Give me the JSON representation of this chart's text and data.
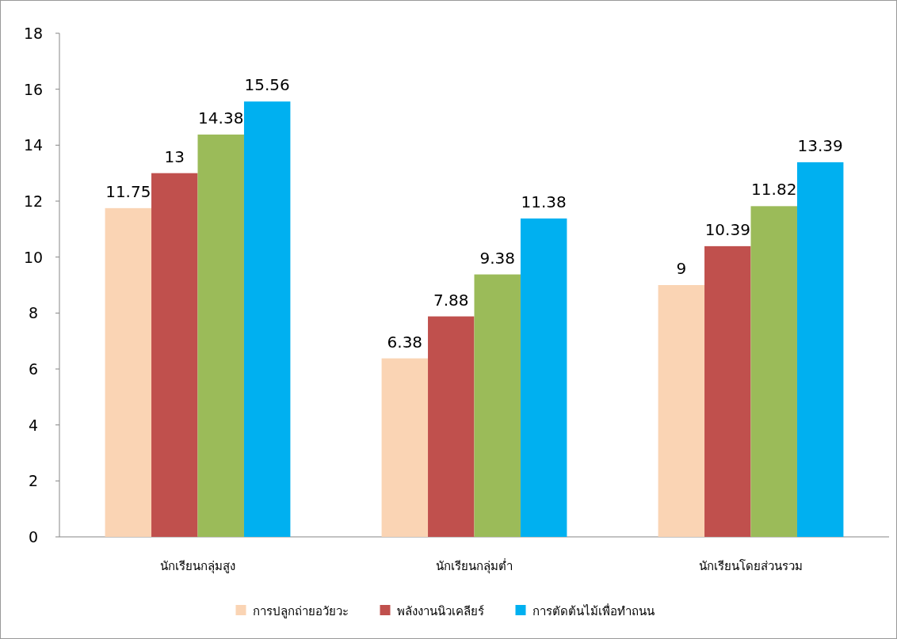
{
  "chart_data": {
    "type": "bar",
    "categories": [
      "นักเรียนกลุ่มสูง",
      "นักเรียนกลุ่มต่ำ",
      "นักเรียนโดยส่วนรวม"
    ],
    "series": [
      {
        "name": "การปลูกถ่ายอวัยวะ",
        "color": "#fad4b4",
        "values": [
          11.75,
          6.38,
          9
        ]
      },
      {
        "name": "พลังงานนิวเคลียร์",
        "color": "#c0504d",
        "values": [
          13,
          7.88,
          10.39
        ]
      },
      {
        "color": "#9bbb59",
        "values": [
          14.38,
          9.38,
          11.82
        ]
      },
      {
        "name": "การตัดต้นไม้เพื่อทำถนน",
        "color": "#00b0f0",
        "values": [
          15.56,
          11.38,
          13.39
        ]
      }
    ],
    "ylim": [
      0,
      18
    ],
    "yticks": [
      0,
      2,
      4,
      6,
      8,
      10,
      12,
      14,
      16,
      18
    ],
    "data_labels": true,
    "legend": "bottom",
    "grid": false
  }
}
